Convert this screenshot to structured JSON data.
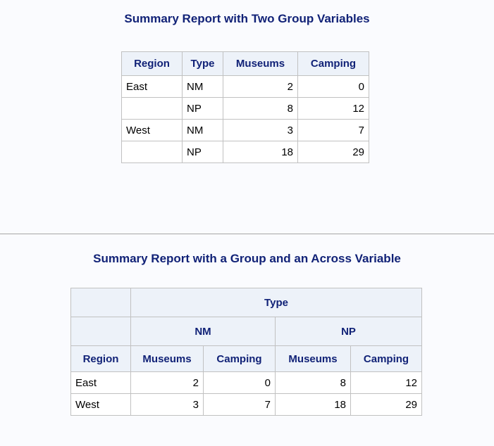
{
  "report1": {
    "title": "Summary Report with Two Group Variables",
    "headers": {
      "region": "Region",
      "type": "Type",
      "museums": "Museums",
      "camping": "Camping"
    },
    "rows": [
      {
        "region": "East",
        "type": "NM",
        "museums": "2",
        "camping": "0"
      },
      {
        "region": "",
        "type": "NP",
        "museums": "8",
        "camping": "12"
      },
      {
        "region": "West",
        "type": "NM",
        "museums": "3",
        "camping": "7"
      },
      {
        "region": "",
        "type": "NP",
        "museums": "18",
        "camping": "29"
      }
    ]
  },
  "report2": {
    "title": "Summary Report with a Group and an Across Variable",
    "across_header": "Type",
    "groups": [
      "NM",
      "NP"
    ],
    "headers": {
      "region": "Region",
      "nm_museums": "Museums",
      "nm_camping": "Camping",
      "np_museums": "Museums",
      "np_camping": "Camping"
    },
    "rows": [
      {
        "region": "East",
        "nm_museums": "2",
        "nm_camping": "0",
        "np_museums": "8",
        "np_camping": "12"
      },
      {
        "region": "West",
        "nm_museums": "3",
        "nm_camping": "7",
        "np_museums": "18",
        "np_camping": "29"
      }
    ]
  },
  "colors": {
    "header_text": "#112277",
    "header_bg": "#edf2f9",
    "page_bg": "#fafbfe",
    "border": "#c1c1c1"
  }
}
